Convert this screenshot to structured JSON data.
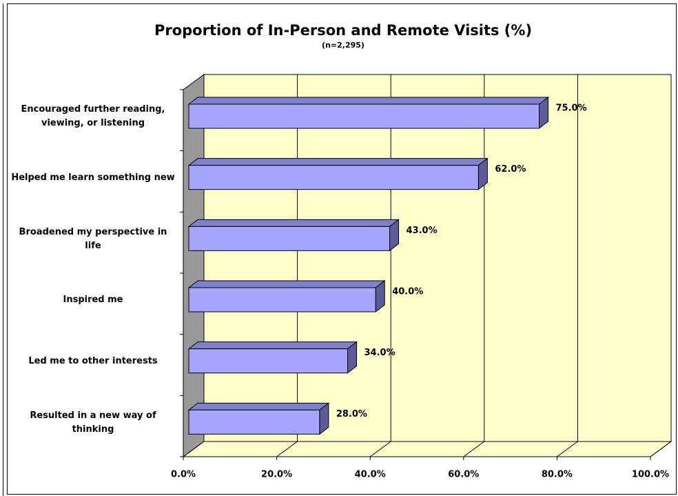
{
  "chart_data": {
    "type": "bar3d",
    "orientation": "horizontal",
    "title": "Proportion of In-Person and Remote Visits (%)",
    "subtitle": "(n=2,295)",
    "categories": [
      "Encouraged further reading, viewing, or listening",
      "Helped me learn something new",
      "Broadened my perspective in life",
      "Inspired me",
      "Led me to other interests",
      "Resulted in a new way of thinking"
    ],
    "values": [
      75,
      62,
      43,
      40,
      34,
      28
    ],
    "value_labels": [
      "75.0%",
      "62.0%",
      "43.0%",
      "40.0%",
      "34.0%",
      "28.0%"
    ],
    "color": "#a6a6ff",
    "xlim": [
      0,
      100
    ],
    "xticks": [
      {
        "value": 0,
        "label": "0.0%"
      },
      {
        "value": 20,
        "label": "20.0%"
      },
      {
        "value": 40,
        "label": "40.0%"
      },
      {
        "value": 60,
        "label": "60.0%"
      },
      {
        "value": 80,
        "label": "80.0%"
      },
      {
        "value": 100,
        "label": "100.0%"
      }
    ],
    "grid": true
  }
}
